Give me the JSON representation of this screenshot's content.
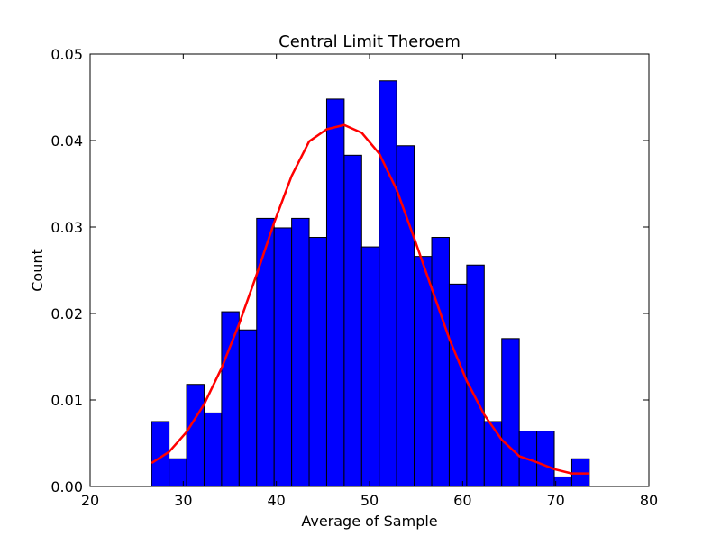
{
  "chart_data": {
    "type": "bar",
    "title": "Central Limit Theroem",
    "xlabel": "Average of Sample",
    "ylabel": "Count",
    "xlim": [
      20,
      80
    ],
    "ylim": [
      0,
      0.05
    ],
    "xticks": [
      20,
      30,
      40,
      50,
      60,
      70,
      80
    ],
    "xtick_labels": [
      "20",
      "30",
      "40",
      "50",
      "60",
      "70",
      "80"
    ],
    "yticks": [
      0.0,
      0.01,
      0.02,
      0.03,
      0.04,
      0.05
    ],
    "ytick_labels": [
      "0.00",
      "0.01",
      "0.02",
      "0.03",
      "0.04",
      "0.05"
    ],
    "grid": false,
    "legend": "none",
    "colors": {
      "bar_fill": "#0000ff",
      "bar_edge": "#000000",
      "curve": "#ff0000"
    },
    "bin_edges": [
      26.6,
      28.48,
      30.36,
      32.24,
      34.12,
      36.0,
      37.88,
      39.76,
      41.64,
      43.52,
      45.4,
      47.28,
      49.16,
      51.04,
      52.92,
      54.8,
      56.68,
      58.56,
      60.44,
      62.32,
      64.2,
      66.08,
      67.96,
      69.84,
      71.72,
      73.6
    ],
    "values": [
      0.0075,
      0.0032,
      0.0118,
      0.0085,
      0.0202,
      0.0181,
      0.031,
      0.0299,
      0.031,
      0.0288,
      0.0448,
      0.0383,
      0.0277,
      0.0469,
      0.0394,
      0.0266,
      0.0288,
      0.0234,
      0.0256,
      0.0075,
      0.0171,
      0.0064,
      0.0064,
      0.0011,
      0.0032
    ],
    "curve": {
      "type": "line",
      "x": [
        26.6,
        28.48,
        30.36,
        32.24,
        34.12,
        36.0,
        37.88,
        39.76,
        41.64,
        43.52,
        45.4,
        47.28,
        49.16,
        51.04,
        52.92,
        54.8,
        56.68,
        58.56,
        60.44,
        62.32,
        64.2,
        66.08,
        67.96,
        69.84,
        71.72,
        73.6
      ],
      "y": [
        0.0027,
        0.004,
        0.0063,
        0.0095,
        0.0137,
        0.0188,
        0.0245,
        0.0305,
        0.0359,
        0.0399,
        0.0413,
        0.0418,
        0.0409,
        0.0385,
        0.0343,
        0.0287,
        0.0229,
        0.0171,
        0.0122,
        0.0083,
        0.0054,
        0.0035,
        0.0028,
        0.002,
        0.0015,
        0.0015
      ]
    }
  }
}
